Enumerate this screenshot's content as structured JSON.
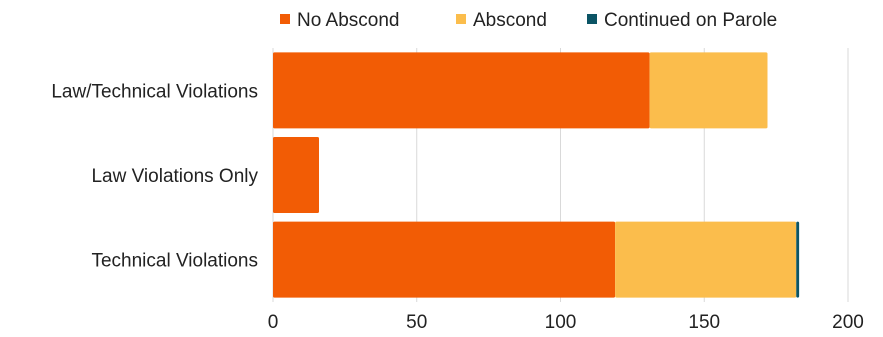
{
  "chart_data": {
    "type": "bar",
    "orientation": "horizontal",
    "stacked": true,
    "categories": [
      "Law/Technical Violations",
      "Law Violations Only",
      "Technical Violations"
    ],
    "series": [
      {
        "name": "No Abscond",
        "values": [
          131,
          16,
          119
        ],
        "color": "#F25C05"
      },
      {
        "name": "Abscond",
        "values": [
          41,
          0,
          63
        ],
        "color": "#FBBD4C"
      },
      {
        "name": "Continued on Parole",
        "values": [
          0,
          0,
          1
        ],
        "color": "#0B5465"
      }
    ],
    "xticks": [
      0,
      50,
      100,
      150,
      200
    ],
    "xlim": [
      0,
      200
    ],
    "grid": "vertical",
    "legend_position": "top"
  }
}
